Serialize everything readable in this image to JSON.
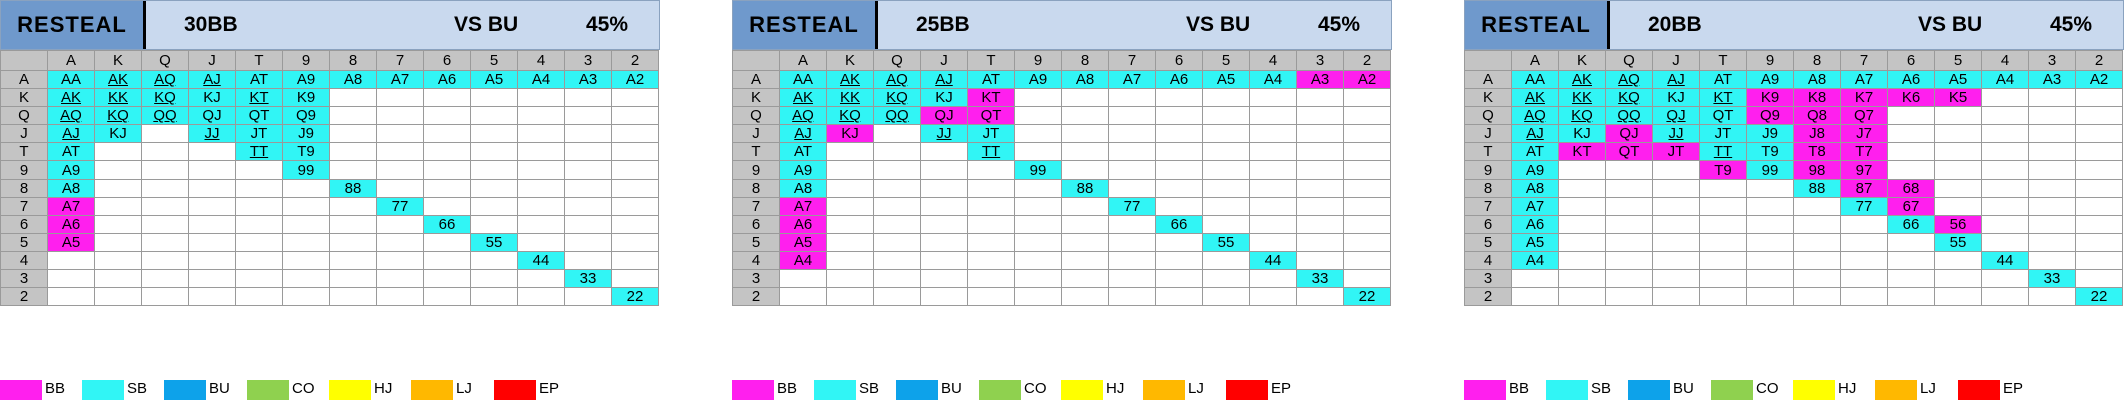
{
  "colors": {
    "cyan": "#31f5f5",
    "magenta": "#ff1fee"
  },
  "axis_labels": [
    "A",
    "K",
    "Q",
    "J",
    "T",
    "9",
    "8",
    "7",
    "6",
    "5",
    "4",
    "3",
    "2"
  ],
  "legend": [
    {
      "label": "BB",
      "color": "#ff1fee"
    },
    {
      "label": "SB",
      "color": "#31f5f5"
    },
    {
      "label": "BU",
      "color": "#0da2ea"
    },
    {
      "label": "CO",
      "color": "#8fd14f"
    },
    {
      "label": "HJ",
      "color": "#ffff00"
    },
    {
      "label": "LJ",
      "color": "#ffb800"
    },
    {
      "label": "EP",
      "color": "#ff0000"
    }
  ],
  "chart_data": [
    {
      "type": "table",
      "title": "RESTEAL",
      "stack": "30BB",
      "vs": "VS BU",
      "pct": "45%",
      "rows": [
        [
          "c:AA",
          "cu:AK",
          "cu:AQ",
          "cu:AJ",
          "c:AT",
          "c:A9",
          "c:A8",
          "c:A7",
          "c:A6",
          "c:A5",
          "c:A4",
          "c:A3",
          "c:A2"
        ],
        [
          "cu:AK",
          "cu:KK",
          "cu:KQ",
          "c:KJ",
          "cu:KT",
          "c:K9",
          "",
          "",
          "",
          "",
          "",
          "",
          ""
        ],
        [
          "cu:AQ",
          "cu:KQ",
          "cu:QQ",
          "c:QJ",
          "c:QT",
          "c:Q9",
          "",
          "",
          "",
          "",
          "",
          "",
          ""
        ],
        [
          "cu:AJ",
          "c:KJ",
          "",
          "cu:JJ",
          "c:JT",
          "c:J9",
          "",
          "",
          "",
          "",
          "",
          "",
          ""
        ],
        [
          "c:AT",
          "",
          "",
          "",
          "cu:TT",
          "c:T9",
          "",
          "",
          "",
          "",
          "",
          "",
          ""
        ],
        [
          "c:A9",
          "",
          "",
          "",
          "",
          "c:99",
          "",
          "",
          "",
          "",
          "",
          "",
          ""
        ],
        [
          "c:A8",
          "",
          "",
          "",
          "",
          "",
          "c:88",
          "",
          "",
          "",
          "",
          "",
          ""
        ],
        [
          "m:A7",
          "",
          "",
          "",
          "",
          "",
          "",
          "c:77",
          "",
          "",
          "",
          "",
          ""
        ],
        [
          "m:A6",
          "",
          "",
          "",
          "",
          "",
          "",
          "",
          "c:66",
          "",
          "",
          "",
          ""
        ],
        [
          "m:A5",
          "",
          "",
          "",
          "",
          "",
          "",
          "",
          "",
          "c:55",
          "",
          "",
          ""
        ],
        [
          "",
          "",
          "",
          "",
          "",
          "",
          "",
          "",
          "",
          "",
          "c:44",
          "",
          ""
        ],
        [
          "",
          "",
          "",
          "",
          "",
          "",
          "",
          "",
          "",
          "",
          "",
          "c:33",
          ""
        ],
        [
          "",
          "",
          "",
          "",
          "",
          "",
          "",
          "",
          "",
          "",
          "",
          "",
          "c:22"
        ]
      ]
    },
    {
      "type": "table",
      "title": "RESTEAL",
      "stack": "25BB",
      "vs": "VS BU",
      "pct": "45%",
      "rows": [
        [
          "c:AA",
          "cu:AK",
          "cu:AQ",
          "cu:AJ",
          "c:AT",
          "c:A9",
          "c:A8",
          "c:A7",
          "c:A6",
          "c:A5",
          "c:A4",
          "m:A3",
          "m:A2"
        ],
        [
          "cu:AK",
          "cu:KK",
          "cu:KQ",
          "c:KJ",
          "m:KT",
          "",
          "",
          "",
          "",
          "",
          "",
          "",
          ""
        ],
        [
          "cu:AQ",
          "cu:KQ",
          "cu:QQ",
          "m:QJ",
          "m:QT",
          "",
          "",
          "",
          "",
          "",
          "",
          "",
          ""
        ],
        [
          "cu:AJ",
          "m:KJ",
          "",
          "cu:JJ",
          "c:JT",
          "",
          "",
          "",
          "",
          "",
          "",
          "",
          ""
        ],
        [
          "c:AT",
          "",
          "",
          "",
          "cu:TT",
          "",
          "",
          "",
          "",
          "",
          "",
          "",
          ""
        ],
        [
          "c:A9",
          "",
          "",
          "",
          "",
          "c:99",
          "",
          "",
          "",
          "",
          "",
          "",
          ""
        ],
        [
          "c:A8",
          "",
          "",
          "",
          "",
          "",
          "c:88",
          "",
          "",
          "",
          "",
          "",
          ""
        ],
        [
          "m:A7",
          "",
          "",
          "",
          "",
          "",
          "",
          "c:77",
          "",
          "",
          "",
          "",
          ""
        ],
        [
          "m:A6",
          "",
          "",
          "",
          "",
          "",
          "",
          "",
          "c:66",
          "",
          "",
          "",
          ""
        ],
        [
          "m:A5",
          "",
          "",
          "",
          "",
          "",
          "",
          "",
          "",
          "c:55",
          "",
          "",
          ""
        ],
        [
          "m:A4",
          "",
          "",
          "",
          "",
          "",
          "",
          "",
          "",
          "",
          "c:44",
          "",
          ""
        ],
        [
          "",
          "",
          "",
          "",
          "",
          "",
          "",
          "",
          "",
          "",
          "",
          "c:33",
          ""
        ],
        [
          "",
          "",
          "",
          "",
          "",
          "",
          "",
          "",
          "",
          "",
          "",
          "",
          "c:22"
        ]
      ]
    },
    {
      "type": "table",
      "title": "RESTEAL",
      "stack": "20BB",
      "vs": "VS BU",
      "pct": "45%",
      "rows": [
        [
          "c:AA",
          "cu:AK",
          "cu:AQ",
          "cu:AJ",
          "c:AT",
          "c:A9",
          "c:A8",
          "c:A7",
          "c:A6",
          "c:A5",
          "c:A4",
          "c:A3",
          "c:A2"
        ],
        [
          "cu:AK",
          "cu:KK",
          "cu:KQ",
          "c:KJ",
          "cu:KT",
          "m:K9",
          "m:K8",
          "m:K7",
          "m:K6",
          "m:K5",
          "",
          "",
          ""
        ],
        [
          "cu:AQ",
          "cu:KQ",
          "cu:QQ",
          "cu:QJ",
          "c:QT",
          "m:Q9",
          "m:Q8",
          "m:Q7",
          "",
          "",
          "",
          "",
          ""
        ],
        [
          "cu:AJ",
          "c:KJ",
          "m:QJ",
          "cu:JJ",
          "c:JT",
          "c:J9",
          "m:J8",
          "m:J7",
          "",
          "",
          "",
          "",
          ""
        ],
        [
          "c:AT",
          "m:KT",
          "m:QT",
          "m:JT",
          "cu:TT",
          "c:T9",
          "m:T8",
          "m:T7",
          "",
          "",
          "",
          "",
          ""
        ],
        [
          "c:A9",
          "",
          "",
          "",
          "m:T9",
          "c:99",
          "m:98",
          "m:97",
          "",
          "",
          "",
          "",
          ""
        ],
        [
          "c:A8",
          "",
          "",
          "",
          "",
          "",
          "c:88",
          "m:87",
          "m:68",
          "",
          "",
          "",
          ""
        ],
        [
          "c:A7",
          "",
          "",
          "",
          "",
          "",
          "",
          "c:77",
          "m:67",
          "",
          "",
          "",
          ""
        ],
        [
          "c:A6",
          "",
          "",
          "",
          "",
          "",
          "",
          "",
          "c:66",
          "m:56",
          "",
          "",
          ""
        ],
        [
          "c:A5",
          "",
          "",
          "",
          "",
          "",
          "",
          "",
          "",
          "c:55",
          "",
          "",
          ""
        ],
        [
          "c:A4",
          "",
          "",
          "",
          "",
          "",
          "",
          "",
          "",
          "",
          "c:44",
          "",
          ""
        ],
        [
          "",
          "",
          "",
          "",
          "",
          "",
          "",
          "",
          "",
          "",
          "",
          "c:33",
          ""
        ],
        [
          "",
          "",
          "",
          "",
          "",
          "",
          "",
          "",
          "",
          "",
          "",
          "",
          "c:22"
        ]
      ]
    }
  ]
}
